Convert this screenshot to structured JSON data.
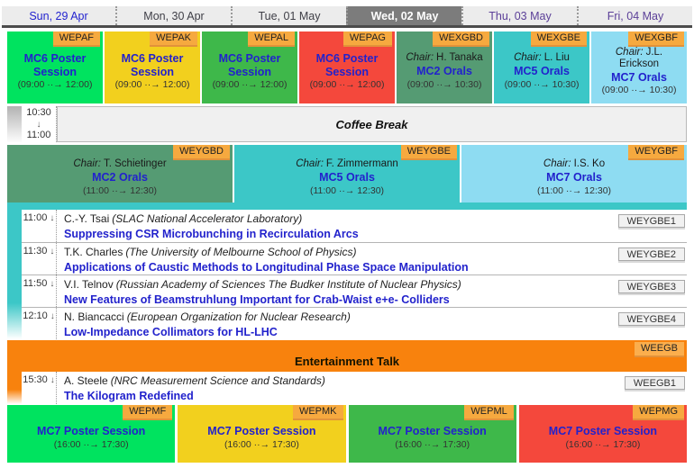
{
  "labels": {
    "chair": "Chair:",
    "down_arrow": "↓"
  },
  "tabs": [
    {
      "label": "Sun, 29 Apr",
      "selected": false
    },
    {
      "label": "Mon, 30 Apr",
      "selected": false
    },
    {
      "label": "Tue, 01 May",
      "selected": false
    },
    {
      "label": "Wed, 02 May",
      "selected": true
    },
    {
      "label": "Thu, 03 May",
      "selected": false
    },
    {
      "label": "Fri, 04 May",
      "selected": false
    }
  ],
  "morning_row": [
    {
      "code": "WEPAF",
      "title": "MC6 Poster Session",
      "time": "(09:00 ··→ 12:00)",
      "color": "#00e35f"
    },
    {
      "code": "WEPAK",
      "title": "MC6 Poster Session",
      "time": "(09:00 ··→ 12:00)",
      "color": "#f2d01e"
    },
    {
      "code": "WEPAL",
      "title": "MC6 Poster Session",
      "time": "(09:00 ··→ 12:00)",
      "color": "#3eb84a"
    },
    {
      "code": "WEPAG",
      "title": "MC6 Poster Session",
      "time": "(09:00 ··→ 12:00)",
      "color": "#f4483c"
    },
    {
      "code": "WEXGBD",
      "chair": "H. Tanaka",
      "title": "MC2 Orals",
      "time": "(09:00 ··→ 10:30)",
      "color": "#559b73"
    },
    {
      "code": "WEXGBE",
      "chair": "L. Liu",
      "title": "MC5 Orals",
      "time": "(09:00 ··→ 10:30)",
      "color": "#3cc7c7"
    },
    {
      "code": "WEXGBF",
      "chair": "J.L. Erickson",
      "title": "MC7 Orals",
      "time": "(09:00 ··→ 10:30)",
      "color": "#8edcf2"
    }
  ],
  "coffee_break": {
    "start": "10:30",
    "end": "11:00",
    "title": "Coffee Break"
  },
  "late_morning_row": [
    {
      "code": "WEYGBD",
      "chair": "T. Schietinger",
      "title": "MC2 Orals",
      "time": "(11:00 ··→ 12:30)",
      "color": "#559b73"
    },
    {
      "code": "WEYGBE",
      "chair": "F. Zimmermann",
      "title": "MC5 Orals",
      "time": "(11:00 ··→ 12:30)",
      "color": "#3cc7c7"
    },
    {
      "code": "WEYGBF",
      "chair": "I.S. Ko",
      "title": "MC7 Orals",
      "time": "(11:00 ··→ 12:30)",
      "color": "#8edcf2"
    }
  ],
  "talks": [
    {
      "time": "11:00",
      "author": "C.-Y. Tsai",
      "affiliation": "(SLAC National Accelerator Laboratory)",
      "title": "Suppressing CSR Microbunching in Recirculation Arcs",
      "code": "WEYGBE1"
    },
    {
      "time": "11:30",
      "author": "T.K. Charles",
      "affiliation": "(The University of Melbourne School of Physics)",
      "title": "Applications of Caustic Methods to Longitudinal Phase Space Manipulation",
      "code": "WEYGBE2"
    },
    {
      "time": "11:50",
      "author": "V.I. Telnov",
      "affiliation": "(Russian Academy of Sciences The Budker Institute of Nuclear Physics)",
      "title": "New Features of Beamstruhlung Important for Crab-Waist e+e- Colliders",
      "code": "WEYGBE3"
    },
    {
      "time": "12:10",
      "author": "N. Biancacci",
      "affiliation": "(European Organization for Nuclear Research)",
      "title": "Low-Impedance Collimators for HL-LHC",
      "code": "WEYGBE4"
    }
  ],
  "entertainment": {
    "code": "WEEGB",
    "title": "Entertainment Talk",
    "color": "#f8820d",
    "talk": {
      "time": "15:30",
      "author": "A. Steele",
      "affiliation": "(NRC Measurement Science and Standards)",
      "title": "The Kilogram Redefined",
      "code": "WEEGB1"
    }
  },
  "afternoon_row": [
    {
      "code": "WEPMF",
      "title": "MC7 Poster Session",
      "time": "(16:00 ··→ 17:30)",
      "color": "#00e35f"
    },
    {
      "code": "WEPMK",
      "title": "MC7 Poster Session",
      "time": "(16:00 ··→ 17:30)",
      "color": "#f2d01e"
    },
    {
      "code": "WEPML",
      "title": "MC7 Poster Session",
      "time": "(16:00 ··→ 17:30)",
      "color": "#3eb84a"
    },
    {
      "code": "WEPMG",
      "title": "MC7 Poster Session",
      "time": "(16:00 ··→ 17:30)",
      "color": "#f4483c"
    }
  ]
}
